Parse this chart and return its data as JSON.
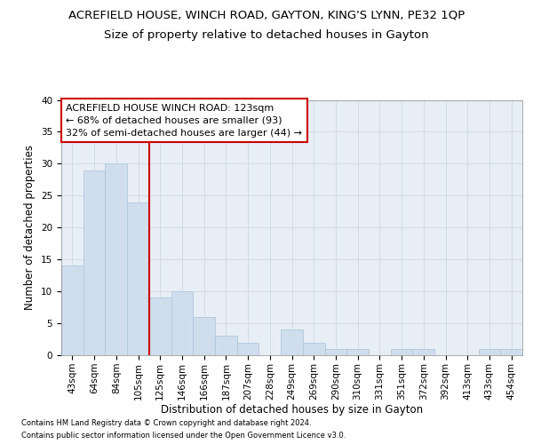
{
  "title": "ACREFIELD HOUSE, WINCH ROAD, GAYTON, KING'S LYNN, PE32 1QP",
  "subtitle": "Size of property relative to detached houses in Gayton",
  "xlabel": "Distribution of detached houses by size in Gayton",
  "ylabel": "Number of detached properties",
  "categories": [
    "43sqm",
    "64sqm",
    "84sqm",
    "105sqm",
    "125sqm",
    "146sqm",
    "166sqm",
    "187sqm",
    "207sqm",
    "228sqm",
    "249sqm",
    "269sqm",
    "290sqm",
    "310sqm",
    "331sqm",
    "351sqm",
    "372sqm",
    "392sqm",
    "413sqm",
    "433sqm",
    "454sqm"
  ],
  "values": [
    14,
    29,
    30,
    24,
    9,
    10,
    6,
    3,
    2,
    0,
    4,
    2,
    1,
    1,
    0,
    1,
    1,
    0,
    0,
    1,
    1
  ],
  "bar_color": "#cfdded",
  "bar_edge_color": "#b0c8de",
  "vline_color": "#cc0000",
  "vline_x": 4.0,
  "annotation_title": "ACREFIELD HOUSE WINCH ROAD: 123sqm",
  "annotation_line1": "← 68% of detached houses are smaller (93)",
  "annotation_line2": "32% of semi-detached houses are larger (44) →",
  "annotation_box_color": "#ffffff",
  "annotation_box_edge": "#cc0000",
  "ylim": [
    0,
    40
  ],
  "yticks": [
    0,
    5,
    10,
    15,
    20,
    25,
    30,
    35,
    40
  ],
  "grid_color": "#c8d4e0",
  "background_color": "#e8eef5",
  "footer_line1": "Contains HM Land Registry data © Crown copyright and database right 2024.",
  "footer_line2": "Contains public sector information licensed under the Open Government Licence v3.0.",
  "title_fontsize": 9.5,
  "subtitle_fontsize": 9.5,
  "xlabel_fontsize": 8.5,
  "ylabel_fontsize": 8.5,
  "tick_fontsize": 7.5,
  "annotation_fontsize": 8,
  "footer_fontsize": 6
}
